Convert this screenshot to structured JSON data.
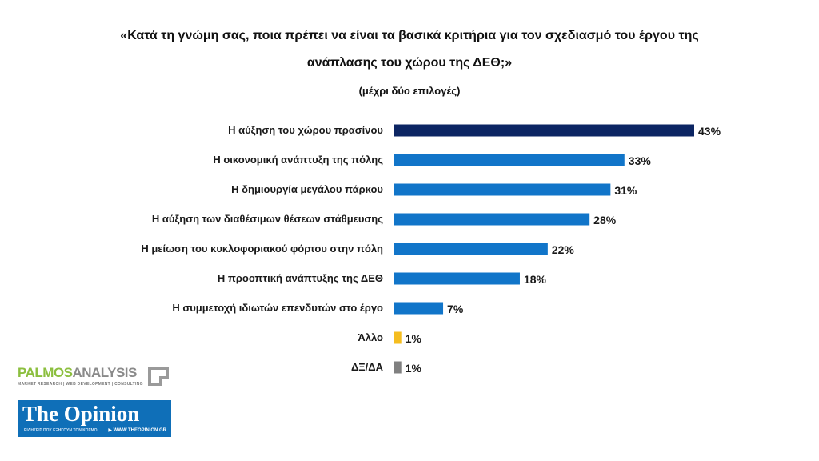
{
  "chart_data": {
    "type": "bar",
    "orientation": "horizontal",
    "title_line1": "«Κατά τη γνώμη σας, ποια πρέπει να είναι τα βασικά κριτήρια για τον σχεδιασμό του έργου της",
    "title_line2": "ανάπλασης του χώρου της ΔΕΘ;»",
    "subtitle": "(μέχρι δύο επιλογές)",
    "categories": [
      "Η αύξηση του χώρου πρασίνου",
      "Η οικονομική ανάπτυξη της πόλης",
      "Η δημιουργία μεγάλου πάρκου",
      "Η αύξηση των διαθέσιμων θέσεων στάθμευσης",
      "Η μείωση του κυκλοφοριακού φόρτου στην πόλη",
      "Η προοπτική ανάπτυξης της ΔΕΘ",
      "Η συμμετοχή ιδιωτών επενδυτών στο έργο",
      "Άλλο",
      "ΔΞ/ΔΑ"
    ],
    "values": [
      43,
      33,
      31,
      28,
      22,
      18,
      7,
      1,
      1
    ],
    "value_labels": [
      "43%",
      "33%",
      "31%",
      "28%",
      "22%",
      "18%",
      "7%",
      "1%",
      "1%"
    ],
    "colors": [
      "#0c2563",
      "#1175c9",
      "#1175c9",
      "#1175c9",
      "#1175c9",
      "#1175c9",
      "#1175c9",
      "#f5bd1f",
      "#808080"
    ],
    "xlim": [
      0,
      43
    ],
    "grid": false,
    "legend": "none"
  },
  "logos": {
    "palmos_part1": "PALMOS",
    "palmos_part2": "ANALYSIS",
    "palmos_sub": "MARKET RESEARCH | WEB DEVELOPMENT | CONSULTING",
    "opinion_title": "The Opinion",
    "opinion_tagline": "ΕΙΔΗΣΕΙΣ ΠΟΥ ΕΞΗΓΟΥΝ ΤΟΝ ΚΟΣΜΟ",
    "opinion_url": "▶ WWW.THEOPINION.GR"
  }
}
